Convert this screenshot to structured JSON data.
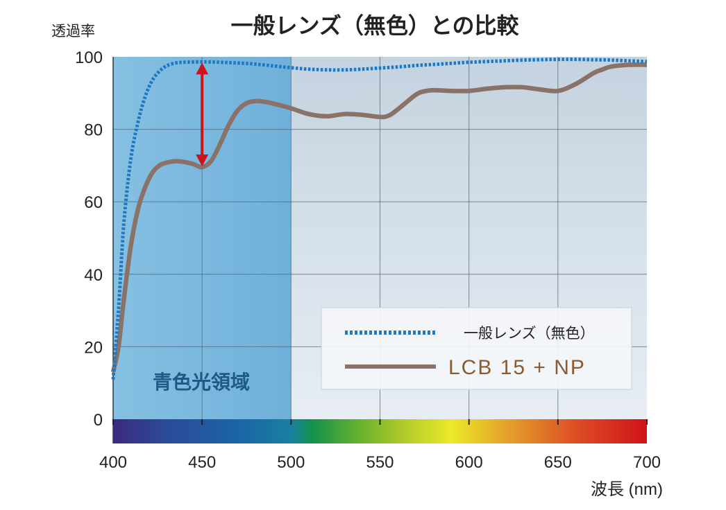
{
  "chart_data": {
    "type": "line",
    "title": "一般レンズ（無色）との比較",
    "ylabel": "透過率",
    "xlabel": "波長 (nm)",
    "xlim": [
      400,
      700
    ],
    "ylim": [
      0,
      100
    ],
    "x_ticks": [
      {
        "value": 400,
        "label": "400"
      },
      {
        "value": 450,
        "label": "450",
        "color": "#d0121b"
      },
      {
        "value": 500,
        "label": "500"
      },
      {
        "value": 550,
        "label": "550"
      },
      {
        "value": 600,
        "label": "600"
      },
      {
        "value": 650,
        "label": "650"
      },
      {
        "value": 700,
        "label": "700"
      }
    ],
    "y_ticks": [
      {
        "value": 0,
        "label": "0"
      },
      {
        "value": 20,
        "label": "20"
      },
      {
        "value": 40,
        "label": "40"
      },
      {
        "value": 60,
        "label": "60"
      },
      {
        "value": 80,
        "label": "80"
      },
      {
        "value": 100,
        "label": "100"
      }
    ],
    "grid": true,
    "shaded_region": {
      "label": "青色光領域",
      "x_range": [
        400,
        500
      ],
      "color": "#7ab8dc"
    },
    "legend": {
      "placement": "bottom-right"
    },
    "series": [
      {
        "name": "一般レンズ（無色）",
        "style": "dotted",
        "color": "#1f78c1",
        "x": [
          400,
          403,
          406,
          410,
          414,
          418,
          422,
          426,
          430,
          435,
          440,
          450,
          460,
          470,
          480,
          490,
          500,
          510,
          520,
          530,
          540,
          550,
          560,
          570,
          580,
          590,
          600,
          610,
          620,
          630,
          640,
          650,
          660,
          670,
          680,
          690,
          700
        ],
        "y": [
          11,
          30,
          54,
          72,
          82,
          89,
          93.5,
          96,
          97.5,
          98.3,
          98.5,
          98.6,
          98.5,
          98.3,
          98,
          97.5,
          97,
          96.6,
          96.4,
          96.4,
          96.6,
          96.9,
          97.2,
          97.6,
          97.9,
          98.2,
          98.5,
          98.7,
          98.9,
          99.1,
          99.2,
          99.3,
          99.3,
          99.2,
          99.1,
          98.9,
          98.7
        ]
      },
      {
        "name": "LCB 15 + NP",
        "style": "solid",
        "color": "#8a7268",
        "x": [
          400,
          403,
          406,
          410,
          414,
          418,
          422,
          426,
          430,
          435,
          440,
          445,
          450,
          455,
          460,
          465,
          470,
          475,
          480,
          485,
          490,
          500,
          510,
          520,
          530,
          540,
          550,
          555,
          560,
          570,
          575,
          580,
          590,
          600,
          610,
          620,
          630,
          640,
          650,
          660,
          670,
          675,
          680,
          690,
          700
        ],
        "y": [
          13,
          20,
          33,
          48,
          58,
          64,
          68,
          70,
          70.8,
          71.2,
          71,
          70.4,
          69.6,
          71.2,
          75.8,
          81.2,
          85.2,
          87.2,
          87.8,
          87.6,
          87.1,
          85.8,
          84.2,
          83.6,
          84.2,
          84,
          83.4,
          83.8,
          85.5,
          89.5,
          90.5,
          90.8,
          90.6,
          90.6,
          91.2,
          91.6,
          91.6,
          91,
          90.6,
          92.5,
          95.5,
          96.5,
          97.3,
          97.8,
          97.8
        ]
      }
    ],
    "annotations": [
      {
        "type": "double-arrow",
        "x": 450,
        "y_from": 69.6,
        "y_to": 98.6,
        "color": "#d0121b"
      }
    ],
    "spectrum_bar": {
      "stops": [
        {
          "x": 400,
          "color": "#3b2a80"
        },
        {
          "x": 430,
          "color": "#2c4a98"
        },
        {
          "x": 470,
          "color": "#1b64a8"
        },
        {
          "x": 500,
          "color": "#1880a0"
        },
        {
          "x": 512,
          "color": "#14924c"
        },
        {
          "x": 540,
          "color": "#6ab42c"
        },
        {
          "x": 560,
          "color": "#a8c82a"
        },
        {
          "x": 590,
          "color": "#ece82a"
        },
        {
          "x": 625,
          "color": "#e39a2a"
        },
        {
          "x": 660,
          "color": "#dd4e24"
        },
        {
          "x": 700,
          "color": "#d0121b"
        }
      ]
    }
  }
}
